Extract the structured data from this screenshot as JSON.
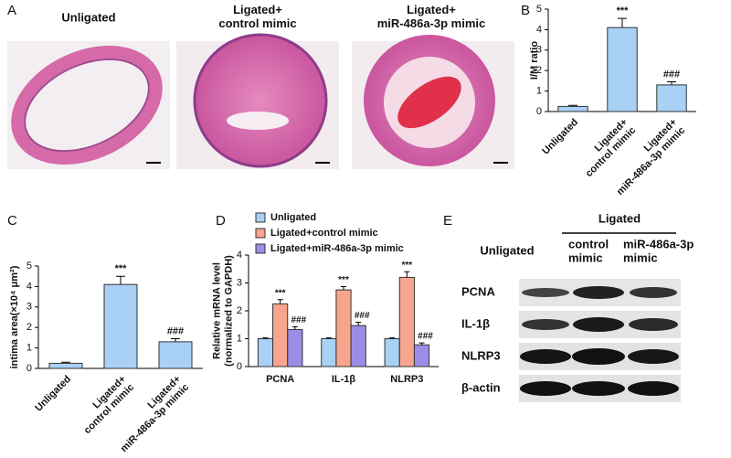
{
  "panel_labels": [
    "A",
    "B",
    "C",
    "D",
    "E"
  ],
  "histology": {
    "titles": [
      "Unligated",
      "Ligated+\ncontrol mimic",
      "Ligated+\nmiR-486a-3p mimic"
    ]
  },
  "blot": {
    "group_label": "Ligated",
    "columns": [
      "Unligated",
      "control\nmimic",
      "miR-486a-3p\nmimic"
    ],
    "rows": [
      "PCNA",
      "IL-1β",
      "NLRP3",
      "β-actin"
    ]
  },
  "chart_data": [
    {
      "type": "bar",
      "ylabel": "I/M ratio",
      "categories": [
        "Unligated",
        "Ligated+\ncontrol mimic",
        "Ligated+\nmiR-486a-3p mimic"
      ],
      "values": [
        0.25,
        4.1,
        1.3
      ],
      "errors": [
        0.05,
        0.45,
        0.15
      ],
      "annotations": [
        null,
        "***",
        "###"
      ],
      "color": "#a9d0f5",
      "ylim": [
        0,
        5
      ],
      "yticks": [
        0,
        1,
        2,
        3,
        4,
        5
      ]
    },
    {
      "type": "bar",
      "ylabel": "intima area(×10⁴ μm²)",
      "categories": [
        "Unligated",
        "Ligated+\ncontrol mimic",
        "Ligated+\nmiR-486a-3p mimic"
      ],
      "values": [
        0.25,
        4.1,
        1.3
      ],
      "errors": [
        0.05,
        0.4,
        0.15
      ],
      "annotations": [
        null,
        "***",
        "###"
      ],
      "color": "#a9d0f5",
      "ylim": [
        0,
        5
      ],
      "yticks": [
        0,
        1,
        2,
        3,
        4,
        5
      ]
    },
    {
      "type": "grouped_bar",
      "ylabel": "Relative mRNA level\n(normalized to GAPDH)",
      "categories": [
        "PCNA",
        "IL-1β",
        "NLRP3"
      ],
      "series": [
        {
          "name": "Unligated",
          "color": "#a9d0f5",
          "values": [
            1,
            1,
            1
          ],
          "errors": [
            0.03,
            0.03,
            0.03
          ],
          "annotations": [
            null,
            null,
            null
          ]
        },
        {
          "name": "Ligated+control mimic",
          "color": "#f7a58c",
          "values": [
            2.25,
            2.75,
            3.2
          ],
          "errors": [
            0.15,
            0.12,
            0.2
          ],
          "annotations": [
            "***",
            "***",
            "***"
          ]
        },
        {
          "name": "Ligated+miR-486a-3p mimic",
          "color": "#9c8ee8",
          "values": [
            1.33,
            1.47,
            0.78
          ],
          "errors": [
            0.1,
            0.12,
            0.07
          ],
          "annotations": [
            "###",
            "###",
            "###"
          ]
        }
      ],
      "ylim": [
        0,
        4
      ],
      "yticks": [
        0,
        1,
        2,
        3,
        4
      ]
    }
  ]
}
